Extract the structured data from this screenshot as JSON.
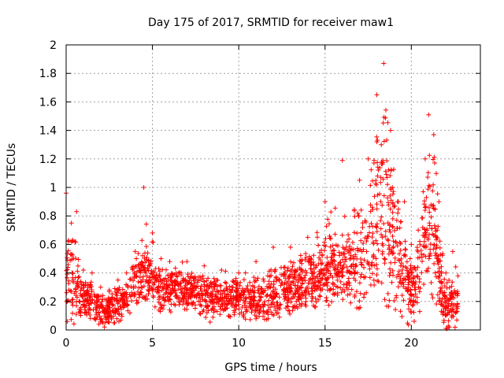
{
  "chart_data": {
    "type": "scatter",
    "title": "Day 175 of 2017, SRMTID for receiver maw1",
    "xlabel": "GPS time / hours",
    "ylabel": "SRMTID / TECUs",
    "xlim": [
      0,
      24
    ],
    "ylim": [
      0,
      2
    ],
    "xticks": [
      0,
      5,
      10,
      15,
      20
    ],
    "xtick_labels": [
      "0",
      "5",
      "10",
      "15",
      "20"
    ],
    "yticks": [
      0,
      0.2,
      0.4,
      0.6,
      0.8,
      1,
      1.2,
      1.4,
      1.6,
      1.8,
      2
    ],
    "ytick_labels": [
      "0",
      "0.2",
      "0.4",
      "0.6",
      "0.8",
      "1",
      "1.2",
      "1.4",
      "1.6",
      "1.8",
      "2"
    ],
    "grid": true,
    "marker": "+",
    "series": [
      {
        "name": "maw1",
        "color": "#ff0000",
        "envelope": [
          [
            0.0,
            0.05,
            0.45,
            0.96
          ],
          [
            0.3,
            0.05,
            0.35,
            0.75
          ],
          [
            0.6,
            0.08,
            0.28,
            0.83
          ],
          [
            1.0,
            0.08,
            0.22,
            0.42
          ],
          [
            1.5,
            0.06,
            0.18,
            0.4
          ],
          [
            2.0,
            0.04,
            0.14,
            0.3
          ],
          [
            2.5,
            0.05,
            0.15,
            0.28
          ],
          [
            3.0,
            0.06,
            0.18,
            0.35
          ],
          [
            3.5,
            0.08,
            0.22,
            0.4
          ],
          [
            4.0,
            0.15,
            0.33,
            0.55
          ],
          [
            4.5,
            0.22,
            0.42,
            1.0
          ],
          [
            5.0,
            0.16,
            0.33,
            0.68
          ],
          [
            5.5,
            0.15,
            0.3,
            0.5
          ],
          [
            6.0,
            0.14,
            0.29,
            0.48
          ],
          [
            7.0,
            0.14,
            0.28,
            0.48
          ],
          [
            8.0,
            0.1,
            0.24,
            0.45
          ],
          [
            9.0,
            0.09,
            0.22,
            0.42
          ],
          [
            10.0,
            0.08,
            0.22,
            0.4
          ],
          [
            11.0,
            0.07,
            0.23,
            0.48
          ],
          [
            12.0,
            0.08,
            0.25,
            0.58
          ],
          [
            13.0,
            0.1,
            0.28,
            0.58
          ],
          [
            14.0,
            0.12,
            0.32,
            0.65
          ],
          [
            15.0,
            0.18,
            0.42,
            0.9
          ],
          [
            16.0,
            0.2,
            0.45,
            1.19
          ],
          [
            17.0,
            0.12,
            0.5,
            1.05
          ],
          [
            17.5,
            0.1,
            0.62,
            1.2
          ],
          [
            18.0,
            0.2,
            0.85,
            1.65
          ],
          [
            18.4,
            0.15,
            0.95,
            1.87
          ],
          [
            18.8,
            0.15,
            0.8,
            1.4
          ],
          [
            19.2,
            0.1,
            0.6,
            0.9
          ],
          [
            19.6,
            0.05,
            0.4,
            0.9
          ],
          [
            20.0,
            0.02,
            0.25,
            0.6
          ],
          [
            20.4,
            0.05,
            0.38,
            0.7
          ],
          [
            20.8,
            0.18,
            0.7,
            1.2
          ],
          [
            21.0,
            0.3,
            0.75,
            1.51
          ],
          [
            21.3,
            0.2,
            0.8,
            1.37
          ],
          [
            21.6,
            0.1,
            0.5,
            0.9
          ],
          [
            22.0,
            0.0,
            0.12,
            0.4
          ],
          [
            22.4,
            0.03,
            0.18,
            0.55
          ],
          [
            22.7,
            0.05,
            0.2,
            0.38
          ]
        ]
      }
    ]
  }
}
